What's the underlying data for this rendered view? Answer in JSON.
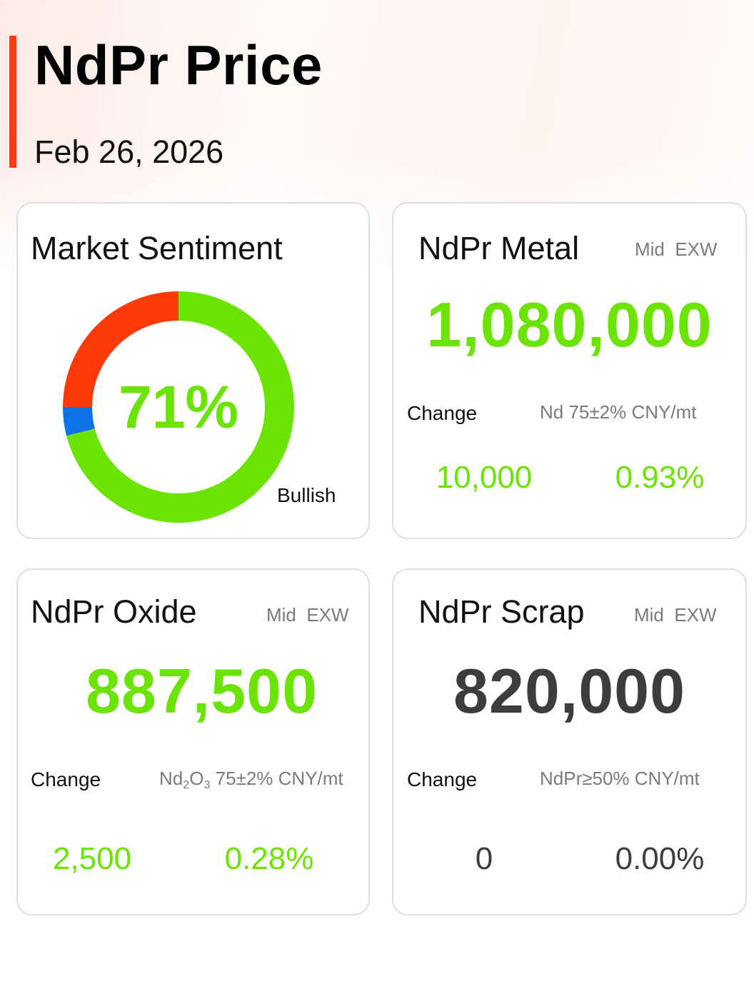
{
  "header": {
    "title": "NdPr Price",
    "date": "Feb 26, 2026",
    "accent_color": "#ff3b14"
  },
  "sentiment": {
    "title": "Market Sentiment",
    "percent_label": "71%",
    "label": "Bullish",
    "segments": [
      {
        "name": "bullish",
        "value": 71,
        "color": "#6be403"
      },
      {
        "name": "neutral",
        "value": 4,
        "color": "#0c72e8"
      },
      {
        "name": "bearish",
        "value": 25,
        "color": "#ff3a0a"
      }
    ]
  },
  "metal": {
    "title": "NdPr Metal",
    "tag": "Mid  EXW",
    "price": "1,080,000",
    "change_label": "Change",
    "spec": "Nd 75±2% CNY/mt",
    "change_abs": "10,000",
    "change_pct": "0.93%"
  },
  "oxide": {
    "title": "NdPr Oxide",
    "tag": "Mid  EXW",
    "price": "887,500",
    "change_label": "Change",
    "spec_base": "Nd",
    "spec_sub1": "2",
    "spec_mid": "O",
    "spec_sub2": "3",
    "spec_rest": " 75±2% CNY/mt",
    "change_abs": "2,500",
    "change_pct": "0.28%"
  },
  "scrap": {
    "title": "NdPr Scrap",
    "tag": "Mid  EXW",
    "price": "820,000",
    "change_label": "Change",
    "spec": "NdPr≥50% CNY/mt",
    "change_abs": "0",
    "change_pct": "0.00%"
  },
  "colors": {
    "positive": "#6be403",
    "neutral_text": "#3d3d3d"
  }
}
